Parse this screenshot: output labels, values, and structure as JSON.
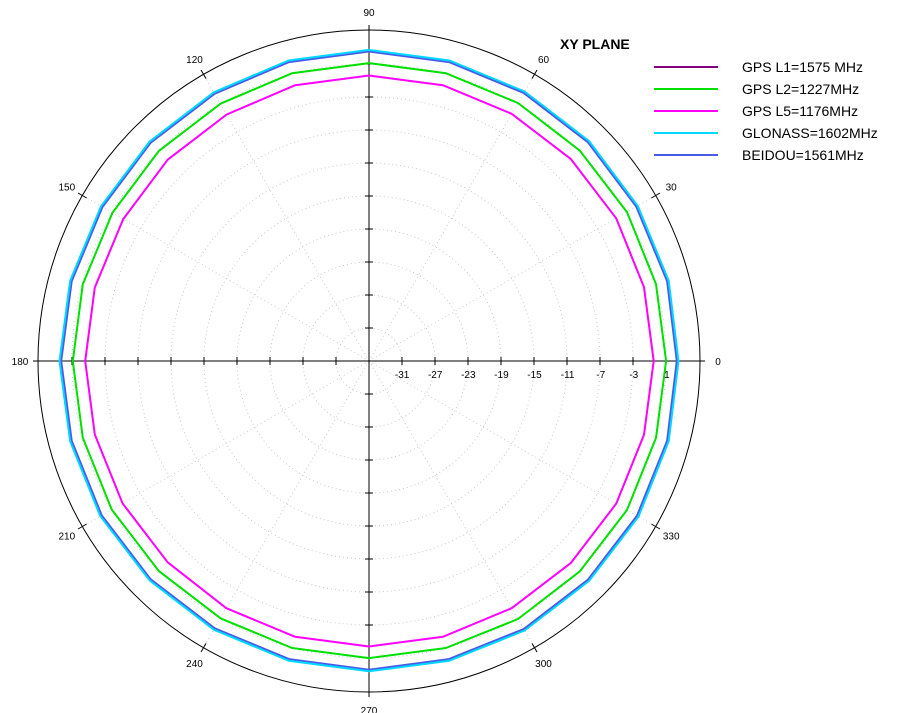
{
  "chart_data": {
    "type": "polar-line",
    "title": "XY PLANE",
    "angle_labels": [
      "0",
      "30",
      "60",
      "90",
      "120",
      "150",
      "180",
      "210",
      "240",
      "270",
      "300",
      "330"
    ],
    "radial_tick_labels": [
      "-31",
      "-27",
      "-23",
      "-19",
      "-15",
      "-11",
      "-7",
      "-3",
      "1"
    ],
    "radial_range_db": [
      -35,
      5
    ],
    "grid": "dotted concentric circles and 30° spokes",
    "legend_position": "top-right",
    "angle_step_deg": 15,
    "series": [
      {
        "name": "GPS L1=1575 MHz",
        "color": "#800080",
        "values": [
          2.3,
          2.4,
          2.4,
          2.5,
          2.5,
          2.5,
          2.5,
          2.5,
          2.4,
          2.4,
          2.3,
          2.3,
          2.3,
          2.3,
          2.4,
          2.4,
          2.4,
          2.4,
          2.4,
          2.4,
          2.5,
          2.5,
          2.5,
          2.4
        ]
      },
      {
        "name": "GPS L2=1227MHz",
        "color": "#00e000",
        "values": [
          0.9,
          0.9,
          1.0,
          1.0,
          1.0,
          1.0,
          1.0,
          1.0,
          0.9,
          0.9,
          0.8,
          0.8,
          0.8,
          0.8,
          0.9,
          0.9,
          0.9,
          0.9,
          0.9,
          0.9,
          1.0,
          1.0,
          1.0,
          0.9
        ]
      },
      {
        "name": "GPS L5=1176MHz",
        "color": "#ff00ff",
        "values": [
          -0.6,
          -0.6,
          -0.5,
          -0.5,
          -0.5,
          -0.5,
          -0.5,
          -0.5,
          -0.6,
          -0.6,
          -0.7,
          -0.7,
          -0.7,
          -0.7,
          -0.6,
          -0.6,
          -0.5,
          -0.5,
          -0.5,
          -0.5,
          -0.5,
          -0.5,
          -0.5,
          -0.6
        ]
      },
      {
        "name": "GLONASS=1602MHz",
        "color": "#00d8ff",
        "values": [
          2.4,
          2.5,
          2.5,
          2.6,
          2.6,
          2.6,
          2.6,
          2.6,
          2.5,
          2.5,
          2.4,
          2.4,
          2.4,
          2.4,
          2.5,
          2.5,
          2.5,
          2.5,
          2.5,
          2.5,
          2.6,
          2.6,
          2.6,
          2.5
        ]
      },
      {
        "name": "BEIDOU=1561MHz",
        "color": "#4a5ae8",
        "values": [
          2.2,
          2.3,
          2.3,
          2.4,
          2.4,
          2.4,
          2.4,
          2.4,
          2.3,
          2.3,
          2.2,
          2.2,
          2.2,
          2.2,
          2.3,
          2.3,
          2.3,
          2.3,
          2.3,
          2.3,
          2.4,
          2.4,
          2.4,
          2.3
        ]
      }
    ]
  }
}
